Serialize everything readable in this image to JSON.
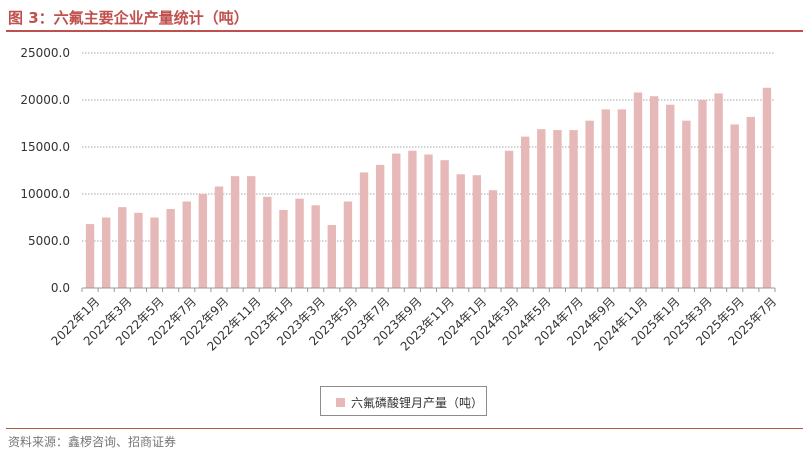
{
  "header": {
    "title": "图 3：六氟主要企业产量统计（吨）"
  },
  "footer": {
    "source": "资料来源：鑫椤咨询、招商证券"
  },
  "colors": {
    "bar": "#e6b8b7",
    "accent": "#c0504d",
    "grid": "#a6a6a6"
  },
  "chart_data": {
    "type": "bar",
    "title": "",
    "xlabel": "",
    "ylabel": "",
    "ylim": [
      0,
      25000
    ],
    "yticks": [
      "0.0",
      "5000.0",
      "10000.0",
      "15000.0",
      "20000.0",
      "25000.0"
    ],
    "grid": true,
    "legend_position": "bottom",
    "categories": [
      "2022年1月",
      "2022年2月",
      "2022年3月",
      "2022年4月",
      "2022年5月",
      "2022年6月",
      "2022年7月",
      "2022年8月",
      "2022年9月",
      "2022年10月",
      "2022年11月",
      "2022年12月",
      "2023年1月",
      "2023年2月",
      "2023年3月",
      "2023年4月",
      "2023年5月",
      "2023年6月",
      "2023年7月",
      "2023年8月",
      "2023年9月",
      "2023年10月",
      "2023年11月",
      "2023年12月",
      "2024年1月",
      "2024年2月",
      "2024年3月",
      "2024年4月",
      "2024年5月",
      "2024年6月",
      "2024年7月",
      "2024年8月",
      "2024年9月",
      "2024年10月",
      "2024年11月",
      "2024年12月",
      "2025年1月",
      "2025年2月",
      "2025年3月",
      "2025年4月",
      "2025年5月",
      "2025年6月",
      "2025年7月"
    ],
    "visible_tick_labels": [
      "2022年1月",
      "2022年3月",
      "2022年5月",
      "2022年7月",
      "2022年9月",
      "2022年11月",
      "2023年1月",
      "2023年3月",
      "2023年5月",
      "2023年7月",
      "2023年9月",
      "2023年11月",
      "2024年1月",
      "2024年3月",
      "2024年5月",
      "2024年7月",
      "2024年9月",
      "2024年11月",
      "2025年1月",
      "2025年3月",
      "2025年5月",
      "2025年7月"
    ],
    "series": [
      {
        "name": "六氟磷酸锂月产量（吨）",
        "values": [
          6800,
          7500,
          8600,
          8000,
          7500,
          8400,
          9200,
          10000,
          10800,
          11900,
          11900,
          9700,
          8300,
          9500,
          8800,
          6700,
          9200,
          12300,
          13100,
          14300,
          14600,
          14200,
          13600,
          12100,
          12000,
          10400,
          14600,
          16100,
          16900,
          16800,
          16800,
          17800,
          19000,
          19000,
          20800,
          20400,
          19500,
          17800,
          20000,
          20700,
          17400,
          18200,
          21300
        ]
      }
    ]
  }
}
